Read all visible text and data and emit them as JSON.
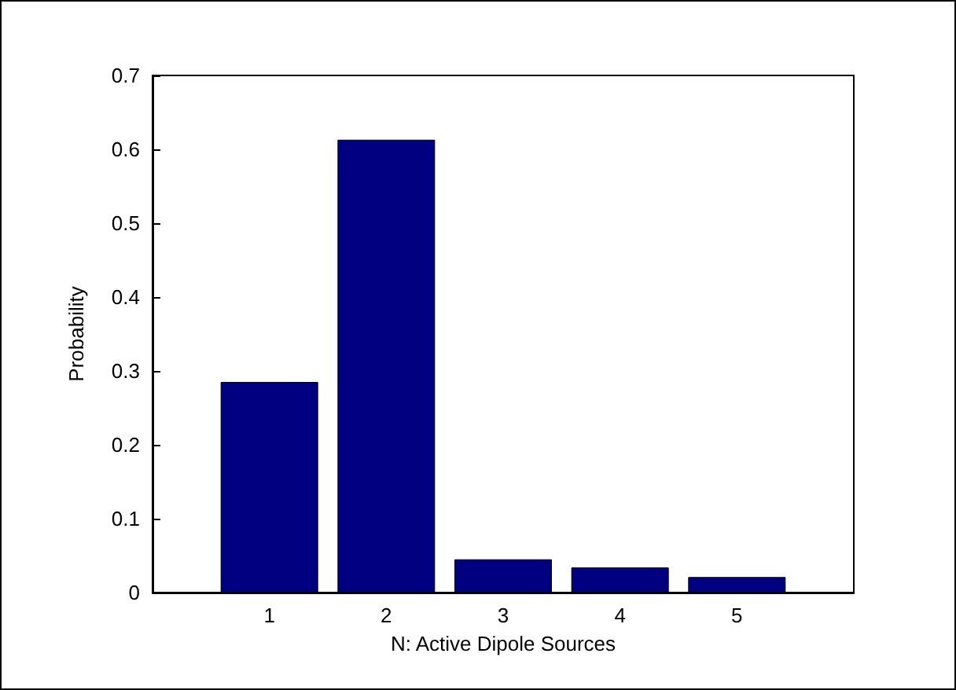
{
  "chart_data": {
    "type": "bar",
    "xlabel": "N: Active Dipole Sources",
    "ylabel": "Probability",
    "x": [
      1,
      2,
      3,
      4,
      5
    ],
    "values": [
      0.285,
      0.613,
      0.045,
      0.034,
      0.021
    ],
    "color": "#000080",
    "xlim": [
      0,
      6
    ],
    "xticks": [
      1,
      2,
      3,
      4,
      5
    ],
    "ylim": [
      0,
      0.7
    ],
    "yticks": [
      0,
      0.1,
      0.2,
      0.3,
      0.4,
      0.5,
      0.6,
      0.7
    ],
    "grid": false
  }
}
